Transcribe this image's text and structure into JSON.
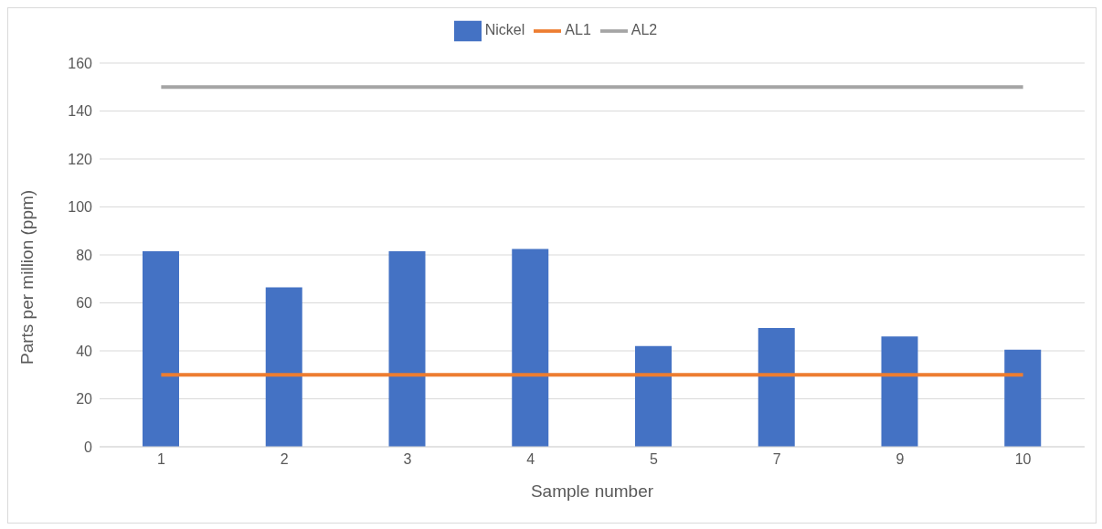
{
  "chart_data": {
    "type": "bar",
    "xlabel": "Sample number",
    "ylabel": "Parts per million (ppm)",
    "categories": [
      "1",
      "2",
      "3",
      "4",
      "5",
      "7",
      "9",
      "10"
    ],
    "series": [
      {
        "name": "Nickel",
        "color": "#4472c4",
        "values": [
          81.5,
          66.5,
          81.5,
          82.5,
          42,
          49.5,
          46,
          40.5
        ]
      },
      {
        "name": "AL1",
        "type": "line",
        "color": "#ed7d31",
        "values": [
          30,
          30,
          30,
          30,
          30,
          30,
          30,
          30
        ]
      },
      {
        "name": "AL2",
        "type": "line",
        "color": "#a5a5a5",
        "values": [
          150,
          150,
          150,
          150,
          150,
          150,
          150,
          150
        ]
      }
    ],
    "ylim": [
      0,
      160
    ],
    "yticks": [
      0,
      20,
      40,
      60,
      80,
      100,
      120,
      140,
      160
    ],
    "grid": "y",
    "legend": "top",
    "marker": "none"
  }
}
